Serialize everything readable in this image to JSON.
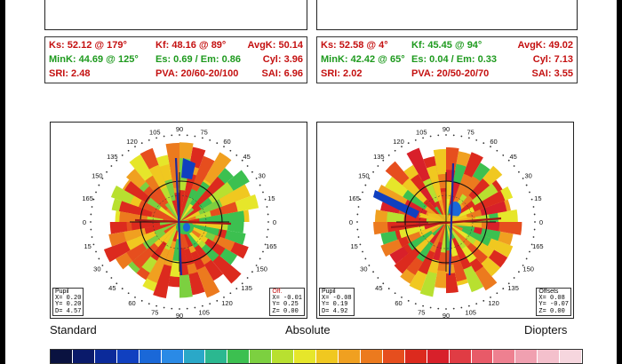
{
  "left_panel": {
    "stats": {
      "ks": "Ks: 52.12 @ 179°",
      "kf": "Kf: 48.16 @ 89°",
      "avgk": "AvgK: 50.14",
      "mink": "MinK: 44.69 @ 125°",
      "es_em": "Es: 0.69 / Em: 0.86",
      "cyl": "Cyl: 3.96",
      "sri": "SRI: 2.48",
      "pva": "PVA: 20/60-20/100",
      "sai": "SAI: 6.96"
    },
    "pupil_box": {
      "title": "Pupil",
      "x": "X= 0.20",
      "y": "Y= 0.20",
      "d": "D= 4.57"
    },
    "offset_box": {
      "title": "Off.",
      "x": "X= -0.01",
      "y": "Y= 0.25",
      "z": "Z= 0.00"
    }
  },
  "right_panel": {
    "stats": {
      "ks": "Ks: 52.58 @ 4°",
      "kf": "Kf: 45.45 @ 94°",
      "avgk": "AvgK: 49.02",
      "mink": "MinK: 42.42 @ 65°",
      "es_em": "Es: 0.04 / Em: 0.33",
      "cyl": "Cyl: 7.13",
      "sri": "SRI: 2.02",
      "pva": "PVA: 20/50-20/70",
      "sai": "SAI: 3.55"
    },
    "pupil_box": {
      "title": "Pupil",
      "x": "X= -0.08",
      "y": "Y= 0.19",
      "d": "D= 4.92"
    },
    "offset_box": {
      "title": "Offsets",
      "x": "X= 0.08",
      "y": "Y= -0.07",
      "z": "Z= 0.00"
    }
  },
  "axis_labels": [
    "90",
    "105",
    "120",
    "135",
    "150",
    "165",
    "0",
    "15",
    "30",
    "45",
    "60",
    "75",
    "90",
    "105",
    "120",
    "135",
    "150",
    "165",
    "0",
    "15",
    "30",
    "45",
    "60",
    "75"
  ],
  "bottom_labels": {
    "standard": "Standard",
    "absolute": "Absolute",
    "diopters": "Diopters"
  },
  "colors": {
    "stat_red": "#c41010",
    "stat_green": "#1e9a1e",
    "colorbar": [
      "#0a1240",
      "#0a1a6a",
      "#0b2a9a",
      "#1040c0",
      "#1a68d8",
      "#2a8ae6",
      "#2aa8c8",
      "#2bb890",
      "#3cc050",
      "#7cd040",
      "#b8e030",
      "#e6e62a",
      "#f0c820",
      "#f0a020",
      "#ec7a1e",
      "#e64e1e",
      "#dc2a1e",
      "#d8202a",
      "#e03c44",
      "#e85a68",
      "#ee8090",
      "#f0a0b0",
      "#f4c0cc",
      "#f6d6de"
    ]
  }
}
